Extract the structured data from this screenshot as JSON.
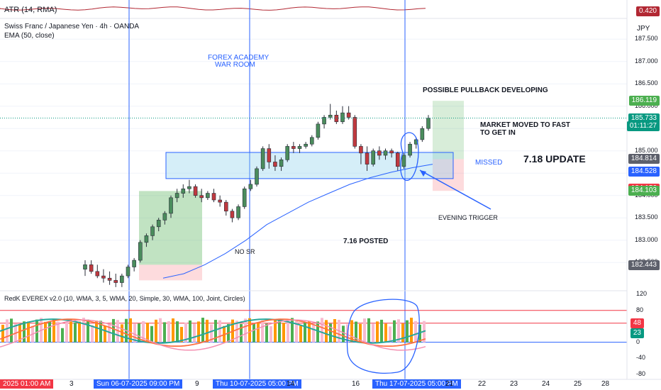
{
  "atr": {
    "label": "ATR (14, RMA)",
    "value": "0.420",
    "color": "#b22833"
  },
  "symbol": {
    "title": "Swiss Franc / Japanese Yen · 4h · OANDA",
    "ema_label": "EMA (50, close)"
  },
  "currency": "JPY",
  "price_axis": {
    "ticks": [
      "187.500",
      "187.000",
      "186.500",
      "186.000",
      "185.500",
      "185.000",
      "184.500",
      "184.000",
      "183.500",
      "183.000",
      "182.500"
    ],
    "tick_values": [
      187.5,
      187.0,
      186.5,
      186.0,
      185.5,
      185.0,
      184.5,
      184.0,
      183.5,
      183.0,
      182.5
    ],
    "tags": [
      {
        "text": "186.119",
        "value": 186.119,
        "color": "#4caf50"
      },
      {
        "text": "185.733",
        "value": 185.733,
        "color": "#089981"
      },
      {
        "text": "01:11:27",
        "value": 185.733,
        "color": "#089981"
      },
      {
        "text": "184.814",
        "value": 184.814,
        "color": "#5d606b"
      },
      {
        "text": "184.528",
        "value": 184.528,
        "color": "#2962ff"
      },
      {
        "text": "184.156",
        "value": 184.156,
        "color": "#f23645"
      },
      {
        "text": "184.103",
        "value": 184.103,
        "color": "#4caf50"
      },
      {
        "text": "182.443",
        "value": 182.443,
        "color": "#5d606b"
      }
    ]
  },
  "annotations": {
    "forex_academy": "FOREX ACADEMY",
    "war_room": "WAR ROOM",
    "pullback": "POSSIBLE PULLBACK DEVELOPING",
    "market_moved_1": "MARKET MOVED TO FAST",
    "market_moved_2": "TO GET IN",
    "missed": "MISSED",
    "update": "7.18 UPDATE",
    "evening_trigger": "EVENING TRIGGER",
    "posted": "7.16 POSTED",
    "no_sr": "NO SR"
  },
  "oscillator": {
    "title": "RedK EVEREX v2.0 (10, WMA, 3, 5, WMA, 20, Simple, 30, WMA, 100, Joint, Circles)",
    "ticks": [
      "120",
      "80",
      "40",
      "0",
      "-40",
      "-80"
    ],
    "tick_values": [
      120,
      80,
      40,
      0,
      -40,
      -80
    ],
    "tags": [
      {
        "text": "48",
        "value": 48,
        "color": "#f23645"
      },
      {
        "text": "23",
        "value": 23,
        "color": "#089981"
      }
    ]
  },
  "time_axis": {
    "labels": [
      "3",
      "9",
      "14",
      "16",
      "21",
      "22",
      "23",
      "24",
      "25",
      "28"
    ],
    "highlights": [
      "2025   01:00 AM",
      "Sun 06-07-2025   09:00 PM",
      "Thu 10-07-2025   05:00 PM",
      "Thu 17-07-2025   05:00 PM"
    ]
  },
  "chart_data": {
    "type": "candlestick",
    "title": "Swiss Franc / Japanese Yen · 4h · OANDA",
    "ylabel": "JPY",
    "ylim": [
      181.9,
      187.9
    ],
    "candles": [
      {
        "o": 182.35,
        "h": 182.55,
        "l": 182.2,
        "c": 182.45
      },
      {
        "o": 182.45,
        "h": 182.55,
        "l": 182.25,
        "c": 182.3
      },
      {
        "o": 182.3,
        "h": 182.45,
        "l": 182.15,
        "c": 182.2
      },
      {
        "o": 182.2,
        "h": 182.35,
        "l": 182.05,
        "c": 182.15
      },
      {
        "o": 182.15,
        "h": 182.3,
        "l": 182.0,
        "c": 182.1
      },
      {
        "o": 182.1,
        "h": 182.25,
        "l": 181.95,
        "c": 182.05
      },
      {
        "o": 182.05,
        "h": 182.25,
        "l": 181.95,
        "c": 182.2
      },
      {
        "o": 182.2,
        "h": 182.45,
        "l": 182.15,
        "c": 182.4
      },
      {
        "o": 182.4,
        "h": 182.6,
        "l": 182.3,
        "c": 182.55
      },
      {
        "o": 182.55,
        "h": 183.0,
        "l": 182.5,
        "c": 182.95
      },
      {
        "o": 182.95,
        "h": 183.15,
        "l": 182.85,
        "c": 183.1
      },
      {
        "o": 183.1,
        "h": 183.35,
        "l": 183.0,
        "c": 183.3
      },
      {
        "o": 183.3,
        "h": 183.5,
        "l": 183.2,
        "c": 183.45
      },
      {
        "o": 183.45,
        "h": 183.65,
        "l": 183.35,
        "c": 183.6
      },
      {
        "o": 183.6,
        "h": 184.0,
        "l": 183.5,
        "c": 183.95
      },
      {
        "o": 183.95,
        "h": 184.15,
        "l": 183.85,
        "c": 184.05
      },
      {
        "o": 184.05,
        "h": 184.25,
        "l": 183.95,
        "c": 184.15
      },
      {
        "o": 184.15,
        "h": 184.35,
        "l": 184.05,
        "c": 184.2
      },
      {
        "o": 184.2,
        "h": 184.25,
        "l": 183.95,
        "c": 184.0
      },
      {
        "o": 184.0,
        "h": 184.15,
        "l": 183.85,
        "c": 183.95
      },
      {
        "o": 183.95,
        "h": 184.1,
        "l": 183.9,
        "c": 184.05
      },
      {
        "o": 184.05,
        "h": 184.15,
        "l": 183.85,
        "c": 183.9
      },
      {
        "o": 183.9,
        "h": 184.0,
        "l": 183.75,
        "c": 183.85
      },
      {
        "o": 183.85,
        "h": 183.9,
        "l": 183.55,
        "c": 183.65
      },
      {
        "o": 183.65,
        "h": 183.7,
        "l": 183.4,
        "c": 183.5
      },
      {
        "o": 183.5,
        "h": 183.8,
        "l": 183.45,
        "c": 183.75
      },
      {
        "o": 183.75,
        "h": 184.2,
        "l": 183.7,
        "c": 184.15
      },
      {
        "o": 184.15,
        "h": 184.35,
        "l": 184.1,
        "c": 184.25
      },
      {
        "o": 184.25,
        "h": 184.65,
        "l": 184.2,
        "c": 184.6
      },
      {
        "o": 184.6,
        "h": 185.1,
        "l": 184.55,
        "c": 185.05
      },
      {
        "o": 185.05,
        "h": 185.15,
        "l": 184.6,
        "c": 184.75
      },
      {
        "o": 184.75,
        "h": 184.9,
        "l": 184.55,
        "c": 184.65
      },
      {
        "o": 184.65,
        "h": 184.85,
        "l": 184.55,
        "c": 184.8
      },
      {
        "o": 184.8,
        "h": 185.15,
        "l": 184.75,
        "c": 185.1
      },
      {
        "o": 185.1,
        "h": 185.2,
        "l": 184.95,
        "c": 185.05
      },
      {
        "o": 185.05,
        "h": 185.15,
        "l": 184.95,
        "c": 185.1
      },
      {
        "o": 185.1,
        "h": 185.2,
        "l": 185.05,
        "c": 185.15
      },
      {
        "o": 185.15,
        "h": 185.35,
        "l": 185.1,
        "c": 185.3
      },
      {
        "o": 185.3,
        "h": 185.65,
        "l": 185.25,
        "c": 185.6
      },
      {
        "o": 185.6,
        "h": 185.8,
        "l": 185.5,
        "c": 185.75
      },
      {
        "o": 185.75,
        "h": 186.05,
        "l": 185.7,
        "c": 185.8
      },
      {
        "o": 185.8,
        "h": 185.9,
        "l": 185.6,
        "c": 185.65
      },
      {
        "o": 185.65,
        "h": 186.0,
        "l": 185.6,
        "c": 185.85
      },
      {
        "o": 185.85,
        "h": 186.0,
        "l": 185.7,
        "c": 185.75
      },
      {
        "o": 185.75,
        "h": 185.8,
        "l": 185.05,
        "c": 185.1
      },
      {
        "o": 185.1,
        "h": 185.15,
        "l": 184.7,
        "c": 184.95
      },
      {
        "o": 184.95,
        "h": 185.1,
        "l": 184.55,
        "c": 184.7
      },
      {
        "o": 184.7,
        "h": 185.05,
        "l": 184.65,
        "c": 185.0
      },
      {
        "o": 185.0,
        "h": 185.1,
        "l": 184.8,
        "c": 184.9
      },
      {
        "o": 184.9,
        "h": 185.05,
        "l": 184.8,
        "c": 185.0
      },
      {
        "o": 185.0,
        "h": 185.05,
        "l": 184.85,
        "c": 184.95
      },
      {
        "o": 184.95,
        "h": 184.98,
        "l": 184.55,
        "c": 184.65
      },
      {
        "o": 184.65,
        "h": 184.95,
        "l": 184.6,
        "c": 184.9
      },
      {
        "o": 184.9,
        "h": 185.2,
        "l": 184.85,
        "c": 185.15
      },
      {
        "o": 185.15,
        "h": 185.3,
        "l": 185.05,
        "c": 185.25
      },
      {
        "o": 185.25,
        "h": 185.55,
        "l": 185.2,
        "c": 185.5
      },
      {
        "o": 185.5,
        "h": 185.8,
        "l": 185.45,
        "c": 185.73
      }
    ],
    "ema": [
      182.15,
      182.25,
      182.45,
      182.7,
      183.0,
      183.35,
      183.6,
      183.85,
      184.05,
      184.25,
      184.4,
      184.52,
      184.62,
      184.7
    ],
    "zone": {
      "low": 184.528,
      "high": 184.814
    },
    "osc_ylim": [
      -88,
      126
    ],
    "osc_levels": [
      80,
      48,
      0
    ]
  }
}
